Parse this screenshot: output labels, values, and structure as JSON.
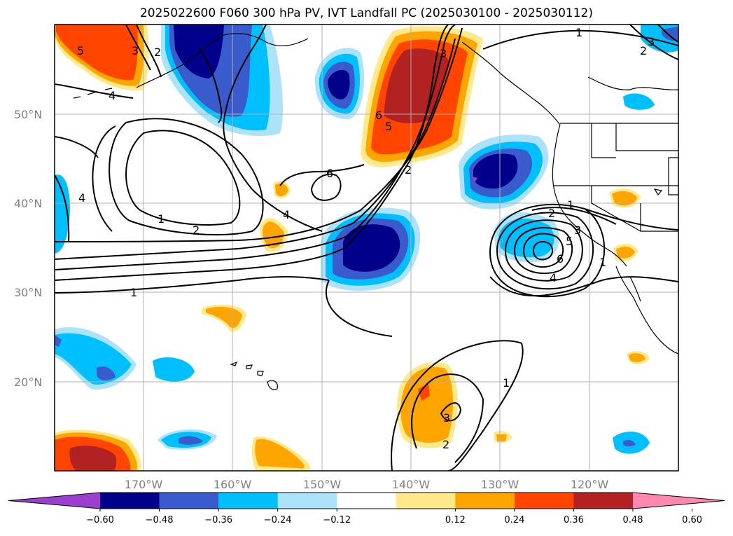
{
  "title": "2025022600 F060 300 hPa PV, IVT Landfall PC (2025030100 - 2025030112)",
  "map": {
    "lat_labels": [
      "50°N",
      "40°N",
      "30°N",
      "20°N"
    ],
    "lon_labels": [
      "170°W",
      "160°W",
      "150°W",
      "140°W",
      "130°W",
      "120°W"
    ]
  },
  "contour_labels": [
    "1",
    "2",
    "3",
    "4",
    "5",
    "6"
  ],
  "colorbar": {
    "ticks": [
      "−0.60",
      "−0.48",
      "−0.36",
      "−0.24",
      "−0.12",
      "0.12",
      "0.24",
      "0.36",
      "0.48",
      "0.60"
    ],
    "colors": [
      "#9a3fcf",
      "#00008b",
      "#3a5bcc",
      "#00bfff",
      "#ade3fa",
      "#ffffff",
      "#ffe98a",
      "#ffa500",
      "#ff4500",
      "#b22222",
      "#ff88b0"
    ]
  },
  "colors": {
    "neg_strong": "#00008b",
    "neg_mid": "#3a5bcc",
    "neg_light": "#00bfff",
    "neg_faint": "#ade3fa",
    "pos_faint": "#ffe98a",
    "pos_light": "#ffa500",
    "pos_mid": "#ff4500",
    "pos_strong": "#b22222",
    "purple": "#9a3fcf"
  }
}
